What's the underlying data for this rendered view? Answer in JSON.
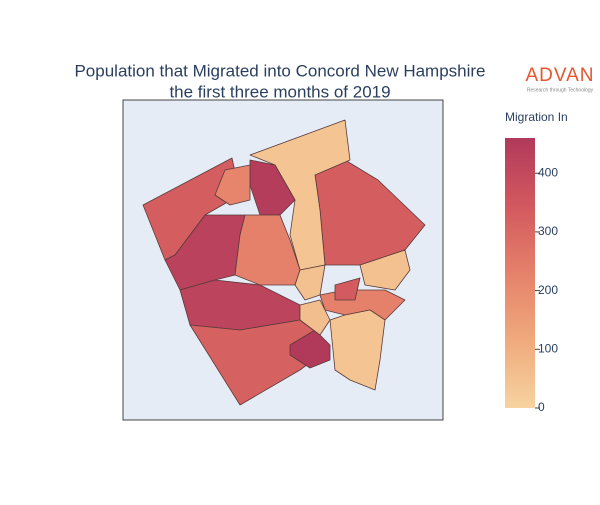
{
  "chart_data": {
    "type": "choropleth",
    "title": [
      "Population that Migrated into Concord New Hampshire",
      "the first three months of 2019"
    ],
    "logo": {
      "name": "ADVAN",
      "tagline": "Research through Technology"
    },
    "colorbar_title": "Migration In",
    "colorscale": [
      "#f6d3a0",
      "#f0aa7c",
      "#e5816a",
      "#d2585f",
      "#b13a5b"
    ],
    "zlim": [
      0,
      460
    ],
    "zticks": [
      0,
      100,
      200,
      300,
      400
    ],
    "values": [
      330,
      430,
      420,
      320,
      330,
      40,
      450,
      220,
      230,
      50,
      230,
      50,
      40,
      460,
      340,
      60
    ]
  }
}
